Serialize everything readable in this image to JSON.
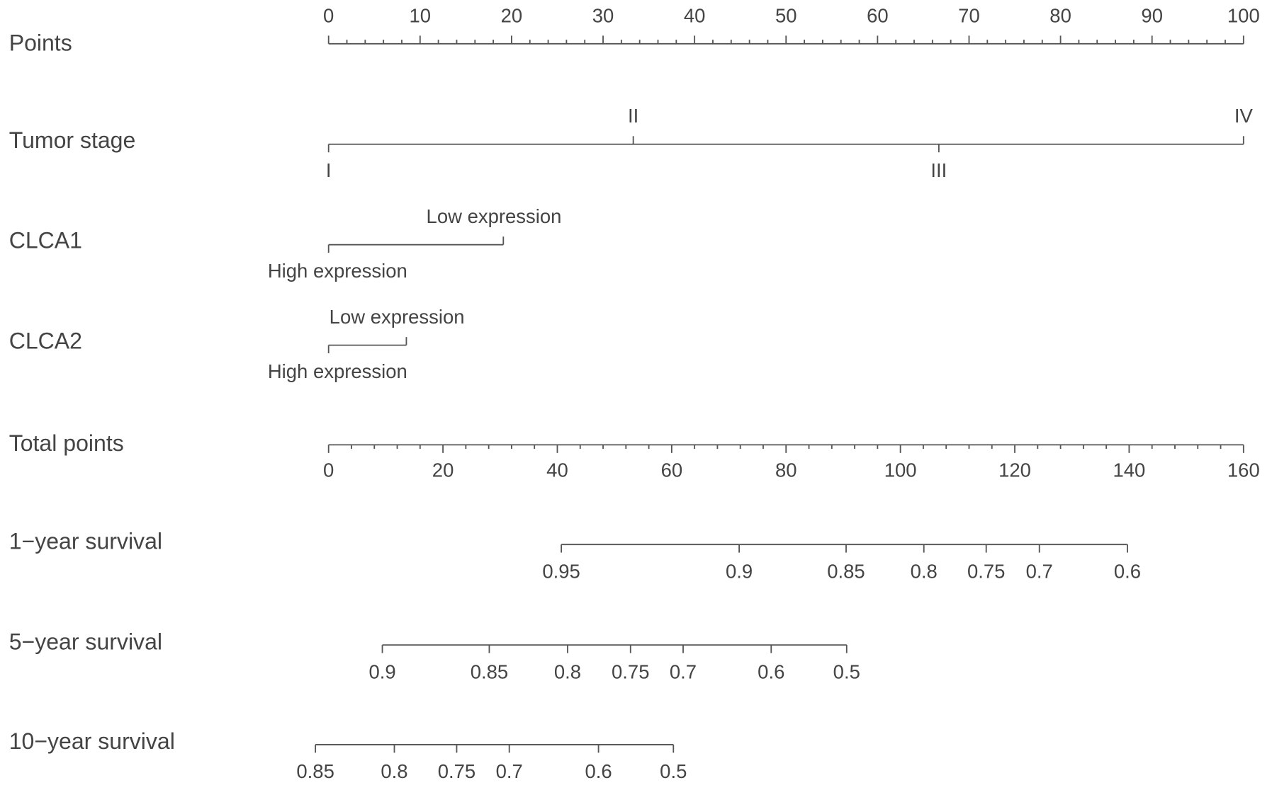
{
  "chart_data": {
    "type": "nomogram",
    "points_axis": {
      "label": "Points",
      "xlim": [
        0,
        100
      ],
      "xticks": [
        0,
        10,
        20,
        30,
        40,
        50,
        60,
        70,
        80,
        90,
        100
      ],
      "minor_per_tick": 5
    },
    "variables": [
      {
        "label": "Tumor stage",
        "levels": [
          "I",
          "II",
          "III",
          "IV"
        ],
        "points": [
          0,
          33.3,
          66.7,
          100
        ]
      },
      {
        "label": "CLCA1",
        "levels": [
          "High expression",
          "Low expression"
        ],
        "points": [
          0,
          19.1
        ]
      },
      {
        "label": "CLCA2",
        "levels": [
          "High expression",
          "Low expression"
        ],
        "points": [
          0,
          8.5
        ]
      }
    ],
    "total_axis": {
      "label": "Total points",
      "xlim": [
        0,
        160
      ],
      "xticks": [
        0,
        20,
        40,
        60,
        80,
        100,
        120,
        140,
        160
      ],
      "minor_per_tick": 5
    },
    "outcomes": [
      {
        "label": "1−year survival",
        "values": [
          0.95,
          0.9,
          0.85,
          0.8,
          0.75,
          0.7,
          0.6
        ],
        "positions": [
          40.7,
          71.8,
          90.5,
          104.1,
          115.0,
          124.3,
          139.7
        ]
      },
      {
        "label": "5−year survival",
        "values": [
          0.9,
          0.85,
          0.8,
          0.75,
          0.7,
          0.6,
          0.5
        ],
        "positions": [
          9.4,
          28.1,
          41.8,
          52.8,
          62.0,
          77.4,
          90.6
        ]
      },
      {
        "label": "10−year survival",
        "values": [
          0.85,
          0.8,
          0.75,
          0.7,
          0.6,
          0.5
        ],
        "positions": [
          -2.3,
          11.5,
          22.4,
          31.6,
          47.2,
          60.3
        ]
      }
    ]
  }
}
